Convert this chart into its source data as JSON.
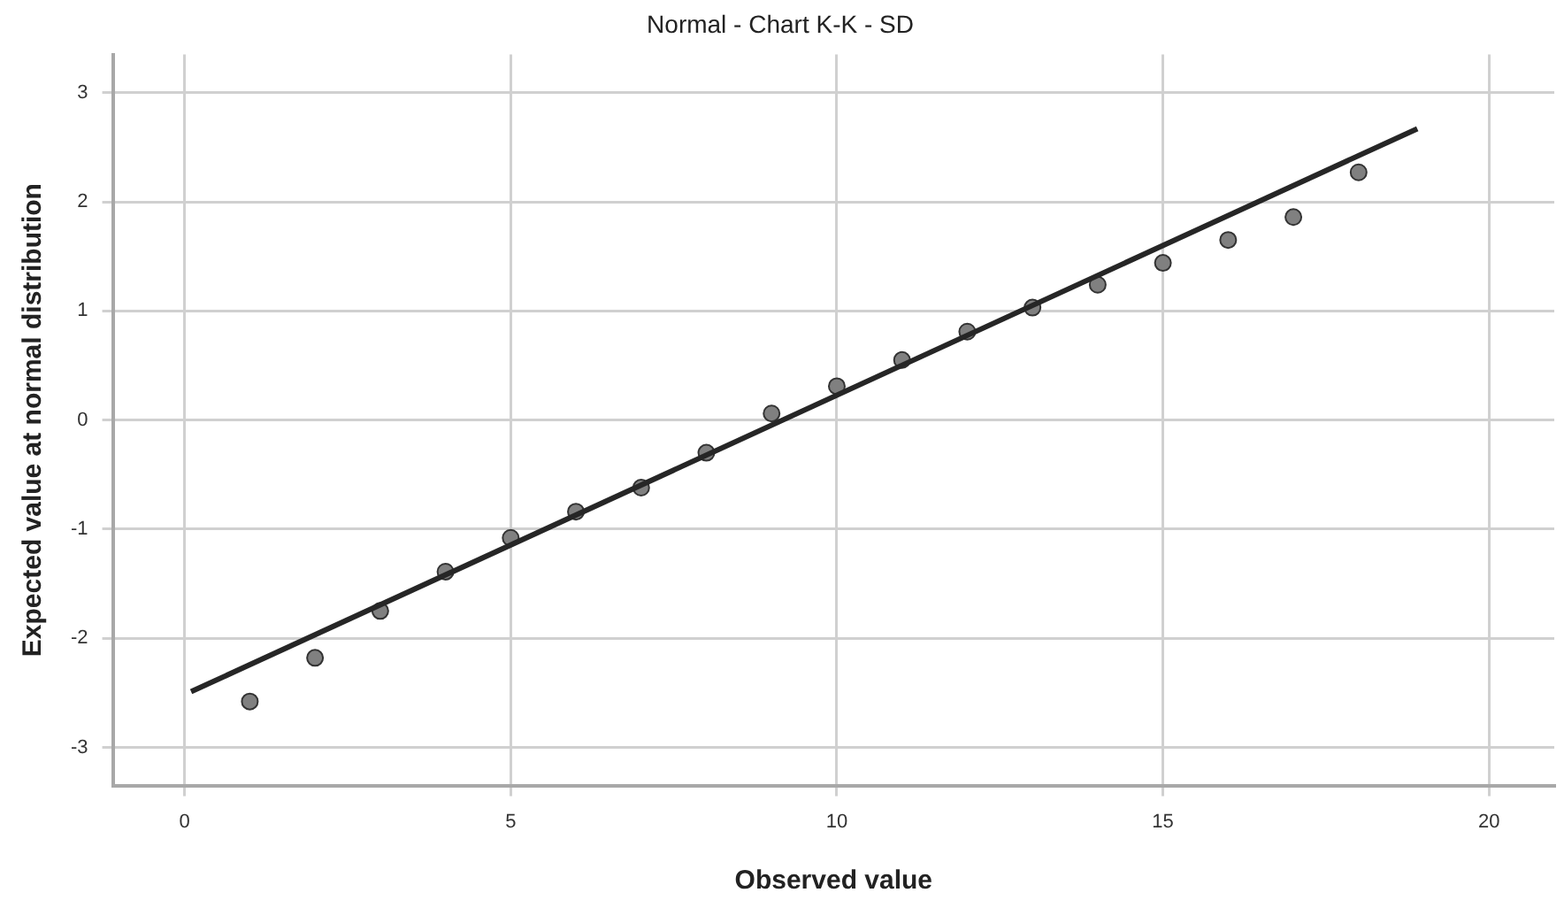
{
  "chart_data": {
    "type": "scatter",
    "title": "Normal - Chart K-K - SD",
    "xlabel": "Observed value",
    "ylabel": "Expected value at normal distribution",
    "xlim": [
      -1.1,
      21
    ],
    "xticks": [
      0,
      5,
      10,
      15,
      20
    ],
    "ylim": [
      -3.35,
      3.35
    ],
    "yticks": [
      -3,
      -2,
      -1,
      0,
      1,
      2,
      3
    ],
    "grid": true,
    "marker": "circle",
    "series": [
      {
        "type": "scatter",
        "color": "#808080",
        "x": [
          1,
          2,
          3,
          4,
          5,
          6,
          7,
          8,
          9,
          10,
          11,
          12,
          13,
          14,
          15,
          16,
          17,
          18
        ],
        "values": [
          -2.58,
          -2.18,
          -1.75,
          -1.39,
          -1.08,
          -0.84,
          -0.62,
          -0.3,
          0.06,
          0.31,
          0.55,
          0.81,
          1.03,
          1.24,
          1.44,
          1.65,
          1.86,
          2.27
        ]
      },
      {
        "type": "line",
        "color": "#262626",
        "x": [
          0.1,
          18.9
        ],
        "values": [
          -2.49,
          2.67
        ],
        "marker": "none"
      }
    ]
  }
}
